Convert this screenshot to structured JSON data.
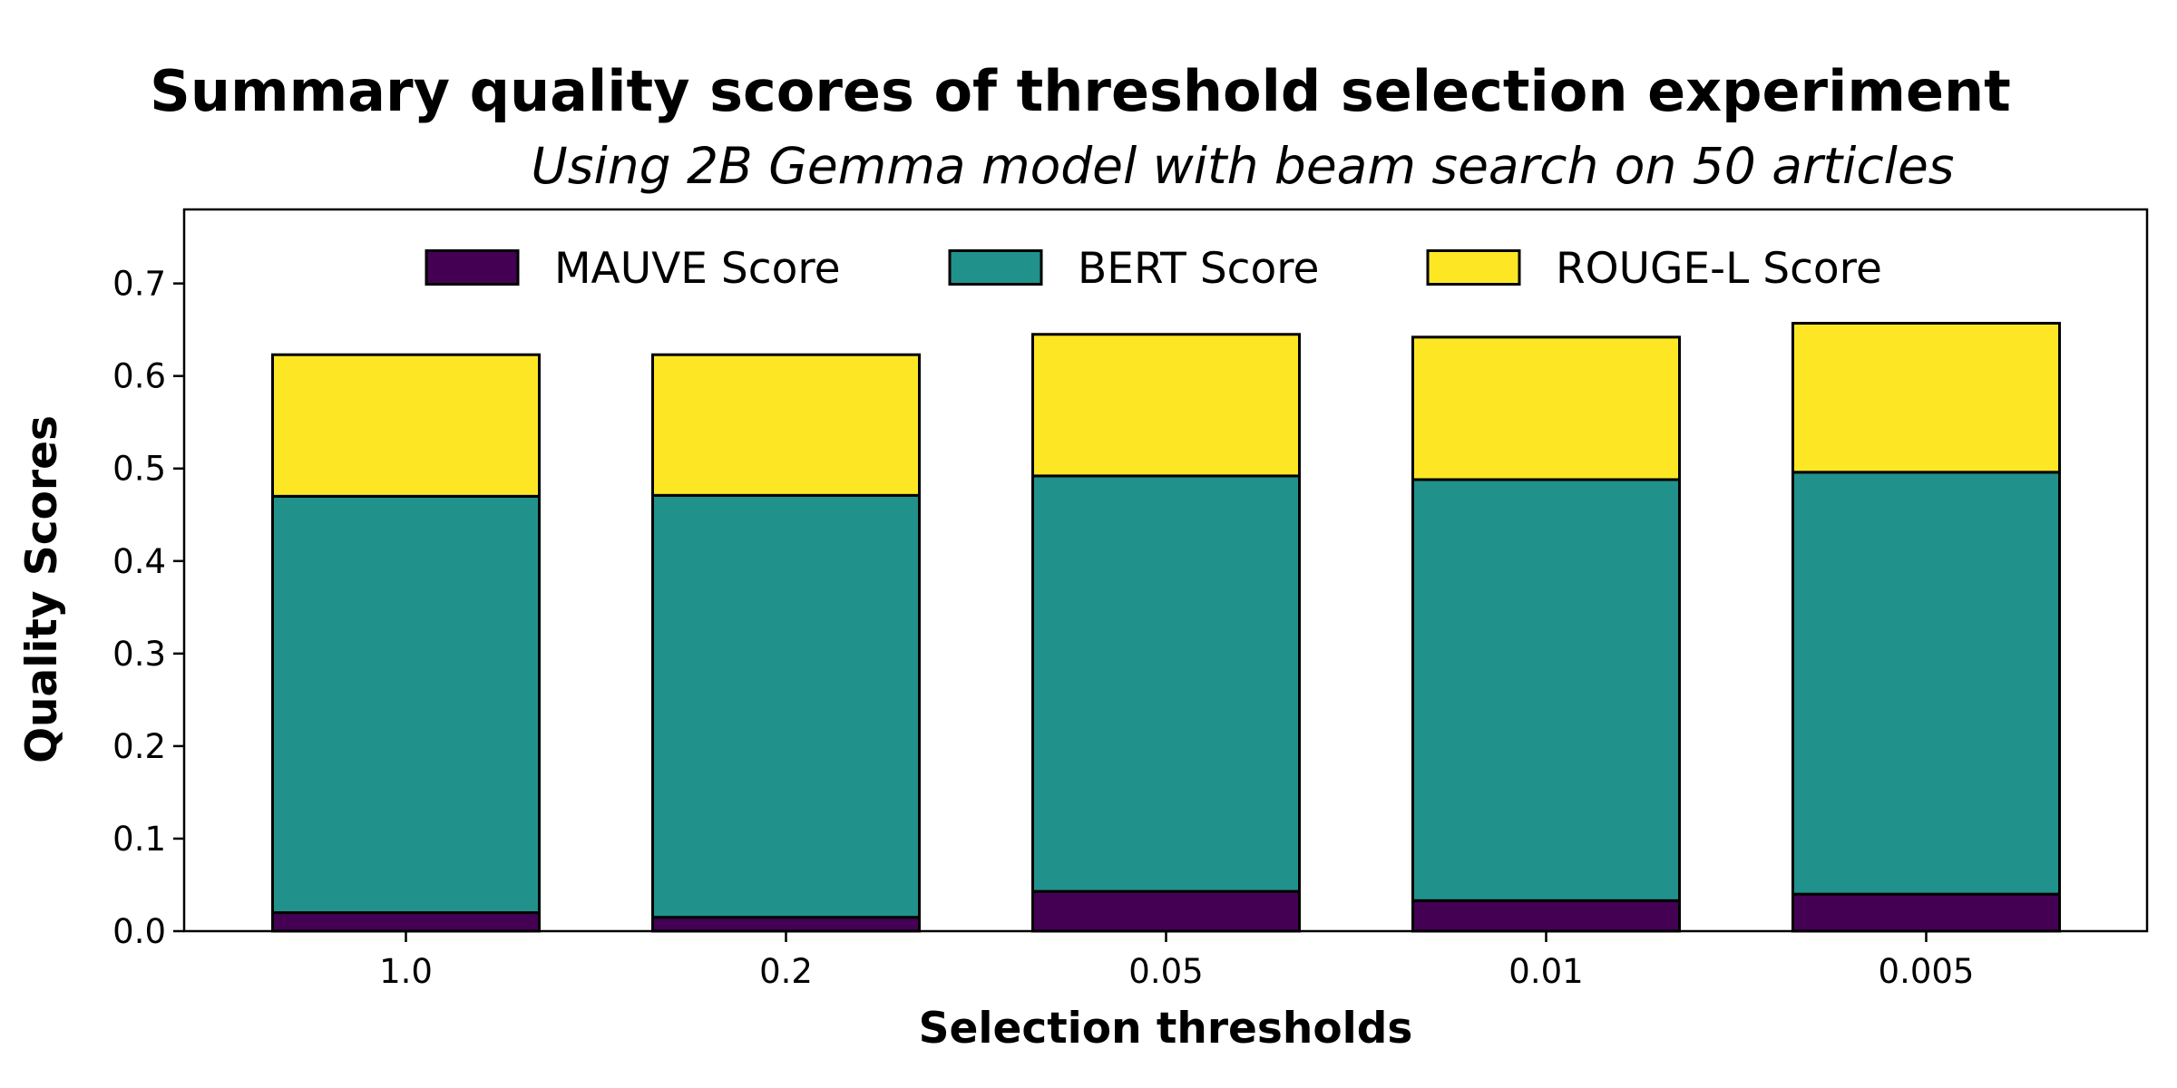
{
  "chart_data": {
    "type": "bar",
    "stacked": true,
    "title": "Summary quality scores of threshold selection experiment",
    "subtitle": "Using 2B Gemma model with beam search on 50 articles",
    "xlabel": "Selection thresholds",
    "ylabel": "Quality Scores",
    "categories": [
      "1.0",
      "0.2",
      "0.05",
      "0.01",
      "0.005"
    ],
    "series": [
      {
        "name": "MAUVE Score",
        "color": "#440154",
        "values": [
          0.02,
          0.015,
          0.043,
          0.033,
          0.04
        ]
      },
      {
        "name": "BERT Score",
        "color": "#21918c",
        "values": [
          0.45,
          0.456,
          0.449,
          0.455,
          0.456
        ]
      },
      {
        "name": "ROUGE-L Score",
        "color": "#fde725",
        "values": [
          0.153,
          0.152,
          0.153,
          0.154,
          0.161
        ]
      }
    ],
    "ylim": [
      0,
      0.78
    ],
    "yticks": [
      "0.0",
      "0.1",
      "0.2",
      "0.3",
      "0.4",
      "0.5",
      "0.6",
      "0.7"
    ],
    "legend_position": "top-center",
    "grid": false
  }
}
